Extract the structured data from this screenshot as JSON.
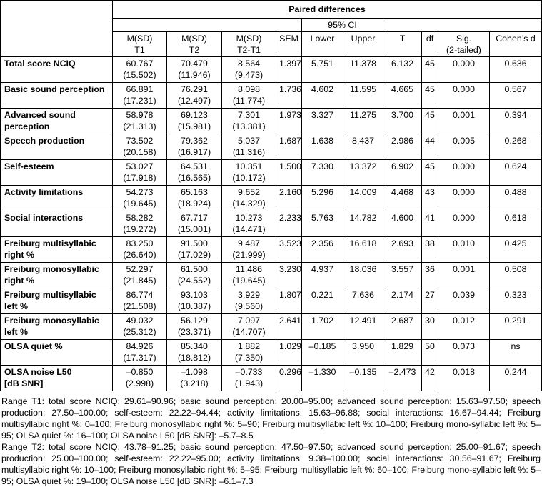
{
  "header": {
    "group": "Paired differences",
    "ci": "95% CI",
    "columns": [
      "M(SD)\nT1",
      "M(SD)\nT2",
      "M(SD)\nT2-T1",
      "SEM",
      "Lower",
      "Upper",
      "T",
      "df",
      "Sig.\n(2-tailed)",
      "Cohen’s d"
    ]
  },
  "rows": [
    {
      "label": "Total score NCIQ",
      "cells": [
        "60.767\n(15.502)",
        "70.479\n(11.946)",
        "8.564\n(9.473)",
        "1.397",
        "5.751",
        "11.378",
        "6.132",
        "45",
        "0.000",
        "0.636"
      ]
    },
    {
      "label": "Basic sound perception",
      "cells": [
        "66.891\n(17.231)",
        "76.291\n(12.497)",
        "8.098\n(11.774)",
        "1.736",
        "4.602",
        "11.595",
        "4.665",
        "45",
        "0.000",
        "0.567"
      ]
    },
    {
      "label": "Advanced sound perception",
      "cells": [
        "58.978\n(21.313)",
        "69.123\n(15.981)",
        "7.301\n(13.381)",
        "1.973",
        "3.327",
        "11.275",
        "3.700",
        "45",
        "0.001",
        "0.394"
      ]
    },
    {
      "label": "Speech production",
      "cells": [
        "73.502\n(20.158)",
        "79.362\n(16.917)",
        "5.037\n(11.316)",
        "1.687",
        "1.638",
        "8.437",
        "2.986",
        "44",
        "0.005",
        "0.268"
      ]
    },
    {
      "label": "Self-esteem",
      "cells": [
        "53.027\n(17.918)",
        "64.531\n(16.565)",
        "10.351\n(10.172)",
        "1.500",
        "7.330",
        "13.372",
        "6.902",
        "45",
        "0.000",
        "0.624"
      ]
    },
    {
      "label": "Activity limitations",
      "cells": [
        "54.273\n(19.645)",
        "65.163\n(18.924)",
        "9.652\n(14.329)",
        "2.160",
        "5.296",
        "14.009",
        "4.468",
        "43",
        "0.000",
        "0.488"
      ]
    },
    {
      "label": "Social interactions",
      "cells": [
        "58.282\n(19.272)",
        "67.717\n(15.001)",
        "10.273\n(14.471)",
        "2.233",
        "5.763",
        "14.782",
        "4.600",
        "41",
        "0.000",
        "0.618"
      ]
    },
    {
      "label": "Freiburg multisyllabic right %",
      "cells": [
        "83.250\n(26.640)",
        "91.500\n(17.029)",
        "9.487\n(21.999)",
        "3.523",
        "2.356",
        "16.618",
        "2.693",
        "38",
        "0.010",
        "0.425"
      ]
    },
    {
      "label": "Freiburg monosyllabic right %",
      "cells": [
        "52.297\n(21.845)",
        "61.500\n(24.552)",
        "11.486\n(19.645)",
        "3.230",
        "4.937",
        "18.036",
        "3.557",
        "36",
        "0.001",
        "0.508"
      ]
    },
    {
      "label": "Freiburg multisyllabic left %",
      "cells": [
        "86.774\n(21.508)",
        "93.103\n(10.387)",
        "3.929\n(9.560)",
        "1.807",
        "0.221",
        "7.636",
        "2.174",
        "27",
        "0.039",
        "0.323"
      ]
    },
    {
      "label": "Freiburg monosyllabic left %",
      "cells": [
        "49.032\n(25.312)",
        "56.129\n(23.371)",
        "7.097\n(14.707)",
        "2.641",
        "1.702",
        "12.491",
        "2.687",
        "30",
        "0.012",
        "0.291"
      ]
    },
    {
      "label": "OLSA quiet %",
      "cells": [
        "84.926\n(17.317)",
        "85.340\n(18.812)",
        "1.882\n(7.350)",
        "1.029",
        "–0.185",
        "3.950",
        "1.829",
        "50",
        "0.073",
        "ns"
      ]
    },
    {
      "label": "OLSA noise L50\n[dB SNR]",
      "cells": [
        "–0.850\n(2.998)",
        "–1.098\n(3.218)",
        "–0.733\n(1.943)",
        "0.296",
        "–1.330",
        "–0.135",
        "–2.473",
        "42",
        "0.018",
        "0.244"
      ]
    }
  ],
  "footnote": {
    "range_t1": "Range T1: total score NCIQ: 29.61–90.96; basic sound perception: 20.00–95.00; advanced sound perception: 15.63–97.50; speech production: 27.50–100.00; self-esteem: 22.22–94.44; activity limitations: 15.63–96.88; social interactions: 16.67–94.44; Freiburg multisyllabic right %: 0–100; Freiburg monosyllabic right %: 5–90; Freiburg multisyllabic left %: 10–100; Freiburg mono-syllabic left %: 5–95; OLSA quiet %: 16–100; OLSA noise L50 [dB SNR]: –5.7–8.5",
    "range_t2": "Range T2: total score NCIQ: 43.78–91.25; basic sound perception: 47.50–97.50; advanced sound perception: 25.00–91.67; speech production: 25.00–100.00; self-esteem: 22.22–95.00; activity limitations: 9.38–100.00; social interactions: 30.56–91.67; Freiburg multisyllabic right %: 10–100; Freiburg monosyllabic right %: 5–95; Freiburg multisyllabic left %: 60–100; Freiburg mono-syllabic left %: 5–95; OLSA quiet %: 19–100; OLSA noise L50 [dB SNR]: –6.1–7.3"
  }
}
